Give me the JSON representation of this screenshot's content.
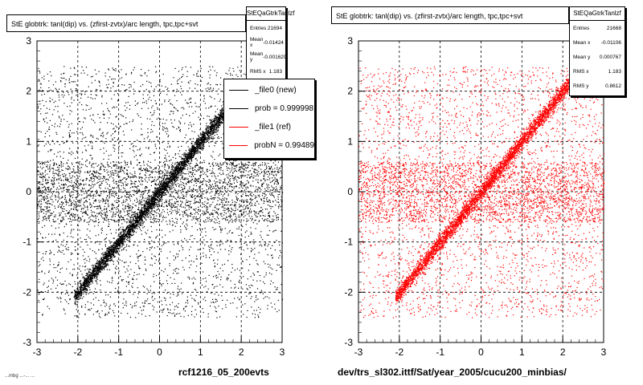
{
  "left": {
    "title": "StE globtrk: tanl(dip) vs. (zfirst-zvtx)/arc length, tpc,tpc+svt",
    "stats": {
      "name": "StEQaGtrkTanlzf",
      "rows": [
        {
          "label": "Entries",
          "value": "21694"
        },
        {
          "label": "Mean x",
          "value": "-0.01424"
        },
        {
          "label": "Mean y",
          "value": "-0.001629"
        },
        {
          "label": "RMS x",
          "value": "1.183"
        }
      ]
    },
    "legend": [
      {
        "label": "_file0 (new)",
        "color": "#000000"
      },
      {
        "label": "prob = 0.999998",
        "color": "#000000"
      },
      {
        "label": "_file1 (ref)",
        "color": "#ff0000"
      },
      {
        "label": "probN = 0.99489",
        "color": "#ff0000"
      }
    ],
    "bottom_label": "rcf1216_05_200evts",
    "footer": "...mbg ...-... ...",
    "marker_color": "#000000"
  },
  "right": {
    "title": "StE globtrk: tanl(dip) vs. (zfirst-zvtx)/arc length, tpc,tpc+svt",
    "stats": {
      "name": "StEQaGtrkTanlzf",
      "rows": [
        {
          "label": "Entries",
          "value": "21668"
        },
        {
          "label": "Mean x",
          "value": "-0.01106"
        },
        {
          "label": "Mean y",
          "value": "0.000767"
        },
        {
          "label": "RMS x",
          "value": "1.183"
        },
        {
          "label": "RMS y",
          "value": "0.8612"
        }
      ]
    },
    "bottom_label": "dev/trs_sl302.ittf/Sat/year_2005/cucu200_minbias/",
    "marker_color": "#ff0000"
  },
  "chart_data": [
    {
      "type": "scatter",
      "title": "StE globtrk: tanl(dip) vs. (zfirst-zvtx)/arc length, tpc,tpc+svt",
      "xlim": [
        -3,
        3
      ],
      "ylim": [
        -3,
        3
      ],
      "x_ticks": [
        -3,
        -2,
        -1,
        0,
        1,
        2,
        3
      ],
      "y_ticks": [
        -3,
        -2,
        -1,
        0,
        1,
        2,
        3
      ],
      "grid": true,
      "legend_position": "top-right",
      "entries": 21694,
      "mean_x": -0.01424,
      "mean_y": -0.001629,
      "rms_x": 1.183,
      "series": [
        {
          "name": "_file0 (new)",
          "color": "#000000",
          "components": [
            {
              "kind": "diagonal-band",
              "x_range": [
                -2.1,
                1.8
              ],
              "slope": 1,
              "intercept": 0,
              "width": 0.08,
              "fraction": 0.42
            },
            {
              "kind": "diffuse",
              "x_range": [
                -3,
                3
              ],
              "y_range": [
                -2.5,
                2.5
              ],
              "fraction": 0.32
            },
            {
              "kind": "horizontal-band",
              "x_range": [
                -3,
                3
              ],
              "y_range": [
                -0.6,
                0.6
              ],
              "fraction": 0.26
            }
          ]
        }
      ]
    },
    {
      "type": "scatter",
      "title": "StE globtrk: tanl(dip) vs. (zfirst-zvtx)/arc length, tpc,tpc+svt",
      "xlim": [
        -3,
        3
      ],
      "ylim": [
        -3,
        3
      ],
      "x_ticks": [
        -3,
        -2,
        -1,
        0,
        1,
        2,
        3
      ],
      "y_ticks": [
        -3,
        -2,
        -1,
        0,
        1,
        2,
        3
      ],
      "grid": true,
      "entries": 21668,
      "mean_x": -0.01106,
      "mean_y": 0.000767,
      "rms_x": 1.183,
      "rms_y": 0.8612,
      "series": [
        {
          "name": "_file1 (ref)",
          "color": "#ff0000",
          "components": [
            {
              "kind": "diagonal-band",
              "x_range": [
                -2.1,
                2.2
              ],
              "slope": 1,
              "intercept": 0,
              "width": 0.08,
              "fraction": 0.42
            },
            {
              "kind": "diffuse",
              "x_range": [
                -3,
                3
              ],
              "y_range": [
                -2.5,
                2.5
              ],
              "fraction": 0.32
            },
            {
              "kind": "horizontal-band",
              "x_range": [
                -3,
                3
              ],
              "y_range": [
                -0.6,
                0.6
              ],
              "fraction": 0.26
            }
          ]
        }
      ]
    }
  ]
}
